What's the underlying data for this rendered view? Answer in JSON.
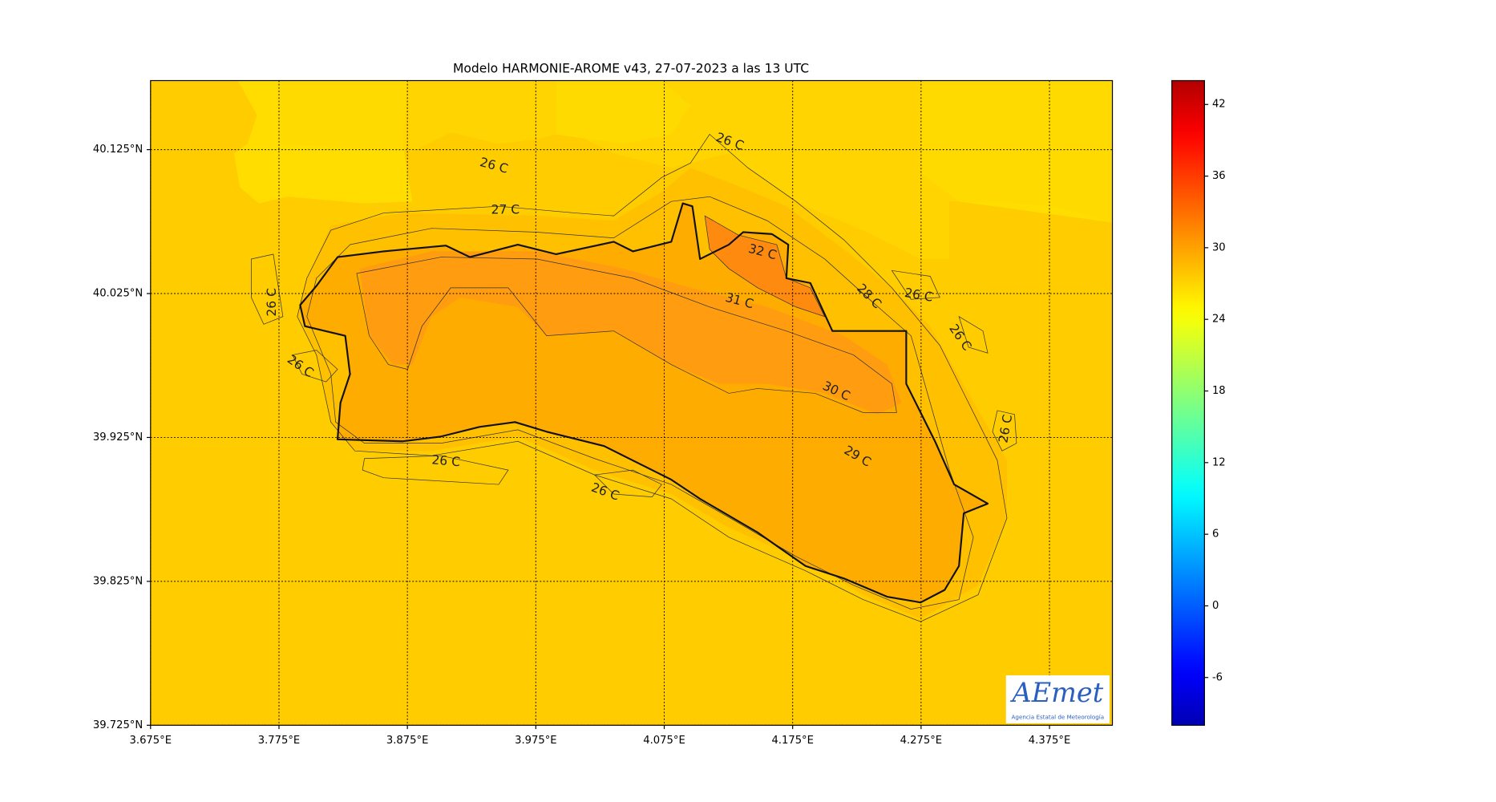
{
  "chart_data": {
    "type": "contour_map",
    "title": "Modelo HARMONIE-AROME v43, 27-07-2023 a las 13 UTC",
    "xlim": [
      3.675,
      4.424
    ],
    "xticks": [
      {
        "value": 3.675,
        "label": "3.675°E"
      },
      {
        "value": 3.775,
        "label": "3.775°E"
      },
      {
        "value": 3.875,
        "label": "3.875°E"
      },
      {
        "value": 3.975,
        "label": "3.975°E"
      },
      {
        "value": 4.075,
        "label": "4.075°E"
      },
      {
        "value": 4.175,
        "label": "4.175°E"
      },
      {
        "value": 4.275,
        "label": "4.275°E"
      },
      {
        "value": 4.375,
        "label": "4.375°E"
      }
    ],
    "ylim": [
      39.725,
      40.173
    ],
    "yticks": [
      {
        "value": 39.725,
        "label": "39.725°N"
      },
      {
        "value": 39.825,
        "label": "39.825°N"
      },
      {
        "value": 39.925,
        "label": "39.925°N"
      },
      {
        "value": 40.025,
        "label": "40.025°N"
      },
      {
        "value": 40.125,
        "label": "40.125°N"
      }
    ],
    "grid": true,
    "colorbar": {
      "colormap": "jet",
      "lim": [
        -10,
        44
      ],
      "ticks": [
        -6,
        0,
        6,
        12,
        18,
        24,
        30,
        36,
        42
      ]
    },
    "annotations": [
      "26 C",
      "26 C",
      "27 C",
      "26 C",
      "26 C",
      "32 C",
      "31 C",
      "28 C",
      "26 C",
      "26 C",
      "30 C",
      "26 C",
      "29 C",
      "26 C",
      "26 C"
    ],
    "logo": {
      "text": "AEmet",
      "subtitle": "Agencia Estatal de Meteorología"
    }
  }
}
